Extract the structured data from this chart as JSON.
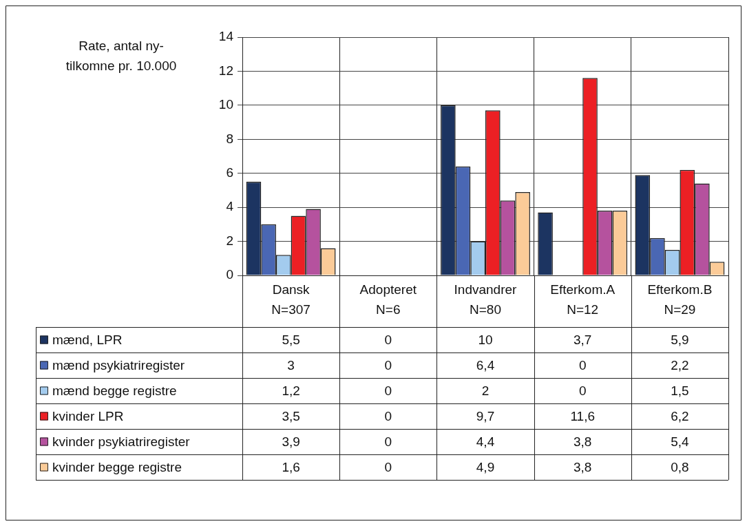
{
  "chart_data": {
    "type": "bar",
    "ylabel": "Rate, antal ny-\ntilkomne pr. 10.000",
    "categories": [
      "Dansk\nN=307",
      "Adopteret\nN=6",
      "Indvandrer\nN=80",
      "Efterkom.A\nN=12",
      "Efterkom.B\nN=29"
    ],
    "series": [
      {
        "name": "mænd, LPR",
        "color": "#1c3461",
        "values": [
          5.5,
          0,
          10,
          3.7,
          5.9
        ],
        "value_labels": [
          "5,5",
          "0",
          "10",
          "3,7",
          "5,9"
        ]
      },
      {
        "name": "mænd psykiatriregister",
        "color": "#4a67b4",
        "values": [
          3,
          0,
          6.4,
          0,
          2.2
        ],
        "value_labels": [
          "3",
          "0",
          "6,4",
          "0",
          "2,2"
        ]
      },
      {
        "name": "mænd begge registre",
        "color": "#a3cbee",
        "values": [
          1.2,
          0,
          2,
          0,
          1.5
        ],
        "value_labels": [
          "1,2",
          "0",
          "2",
          "0",
          "1,5"
        ]
      },
      {
        "name": "kvinder LPR",
        "color": "#ec2024",
        "values": [
          3.5,
          0,
          9.7,
          11.6,
          6.2
        ],
        "value_labels": [
          "3,5",
          "0",
          "9,7",
          "11,6",
          "6,2"
        ]
      },
      {
        "name": "kvinder psykiatriregister",
        "color": "#b5529e",
        "values": [
          3.9,
          0,
          4.4,
          3.8,
          5.4
        ],
        "value_labels": [
          "3,9",
          "0",
          "4,4",
          "3,8",
          "5,4"
        ]
      },
      {
        "name": "kvinder begge registre",
        "color": "#fbcb98",
        "values": [
          1.6,
          0,
          4.9,
          3.8,
          0.8
        ],
        "value_labels": [
          "1,6",
          "0",
          "4,9",
          "3,8",
          "0,8"
        ]
      }
    ],
    "ylim": [
      0,
      14
    ],
    "yticks": [
      0,
      2,
      4,
      6,
      8,
      10,
      12,
      14
    ],
    "grid": true,
    "legend": "bottom"
  }
}
